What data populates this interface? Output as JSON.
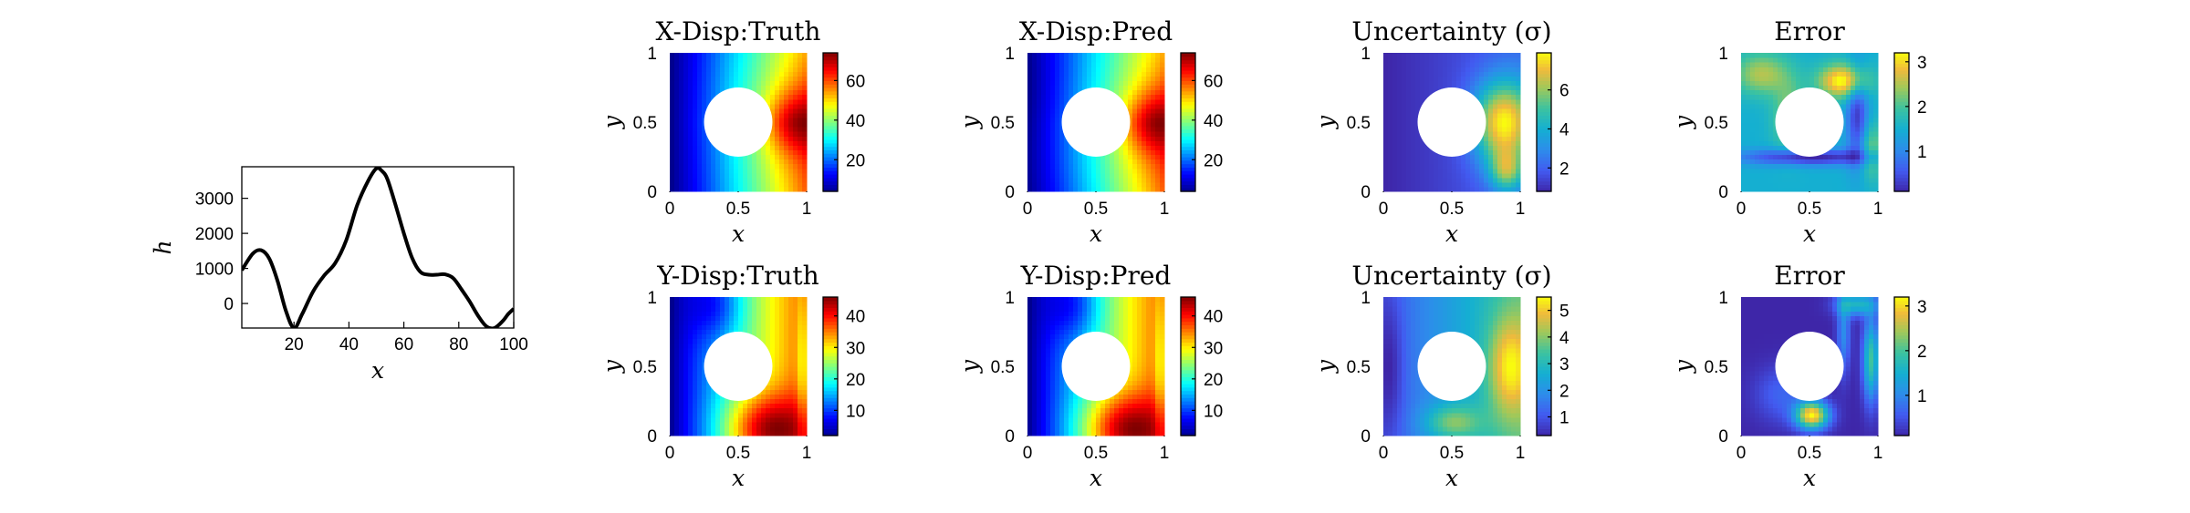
{
  "chart_data": [
    {
      "type": "line",
      "title": "",
      "xlabel": "x",
      "ylabel": "h",
      "xlim": [
        1,
        100
      ],
      "ylim": [
        -700,
        3900
      ],
      "xticks": [
        20,
        40,
        60,
        80,
        100
      ],
      "yticks": [
        0,
        1000,
        2000,
        3000
      ],
      "grid": false,
      "series": [
        {
          "x": [
            1,
            5,
            8,
            11,
            14,
            17,
            20,
            23,
            27,
            31,
            35,
            39,
            43,
            47,
            50,
            52,
            54,
            57,
            60,
            63,
            66,
            69,
            72,
            75,
            78,
            81,
            84,
            87,
            90,
            93,
            96,
            98,
            100
          ],
          "values": [
            950,
            1420,
            1520,
            1280,
            650,
            -200,
            -700,
            -300,
            350,
            800,
            1150,
            1800,
            2800,
            3500,
            3850,
            3780,
            3550,
            2800,
            2000,
            1300,
            900,
            820,
            820,
            830,
            720,
            400,
            50,
            -350,
            -650,
            -700,
            -500,
            -300,
            -150
          ]
        }
      ],
      "color": "#000000"
    },
    {
      "type": "heatmap",
      "title": "X-Disp:Truth",
      "xlabel": "x",
      "ylabel": "y",
      "xlim": [
        0,
        1
      ],
      "ylim": [
        0,
        1
      ],
      "xticks": [
        0,
        0.5,
        1
      ],
      "yticks": [
        0,
        0.5,
        1
      ],
      "hole": {
        "center": [
          0.5,
          0.5
        ],
        "radius": 0.25
      },
      "colormap": "jet",
      "clim": [
        4,
        74
      ],
      "colorbar_ticks": [
        20,
        40,
        60
      ],
      "field": "xdisp_truth"
    },
    {
      "type": "heatmap",
      "title": "X-Disp:Pred",
      "xlabel": "x",
      "ylabel": "y",
      "xlim": [
        0,
        1
      ],
      "ylim": [
        0,
        1
      ],
      "xticks": [
        0,
        0.5,
        1
      ],
      "yticks": [
        0,
        0.5,
        1
      ],
      "hole": {
        "center": [
          0.5,
          0.5
        ],
        "radius": 0.25
      },
      "colormap": "jet",
      "clim": [
        4,
        74
      ],
      "colorbar_ticks": [
        20,
        40,
        60
      ],
      "field": "xdisp_pred"
    },
    {
      "type": "heatmap",
      "title": "Uncertainty (σ)",
      "xlabel": "x",
      "ylabel": "y",
      "xlim": [
        0,
        1
      ],
      "ylim": [
        0,
        1
      ],
      "xticks": [
        0,
        0.5,
        1
      ],
      "yticks": [
        0,
        0.5,
        1
      ],
      "hole": {
        "center": [
          0.5,
          0.5
        ],
        "radius": 0.25
      },
      "colormap": "parula",
      "clim": [
        0.8,
        7.9
      ],
      "colorbar_ticks": [
        2,
        4,
        6
      ],
      "field": "xdisp_uncertainty"
    },
    {
      "type": "heatmap",
      "title": "Error",
      "xlabel": "x",
      "ylabel": "y",
      "xlim": [
        0,
        1
      ],
      "ylim": [
        0,
        1
      ],
      "xticks": [
        0,
        0.5,
        1
      ],
      "yticks": [
        0,
        0.5,
        1
      ],
      "hole": {
        "center": [
          0.5,
          0.5
        ],
        "radius": 0.25
      },
      "colormap": "parula",
      "clim": [
        0.1,
        3.2
      ],
      "colorbar_ticks": [
        1,
        2,
        3
      ],
      "field": "xdisp_error"
    },
    {
      "type": "heatmap",
      "title": "Y-Disp:Truth",
      "xlabel": "x",
      "ylabel": "y",
      "xlim": [
        0,
        1
      ],
      "ylim": [
        0,
        1
      ],
      "xticks": [
        0,
        0.5,
        1
      ],
      "yticks": [
        0,
        0.5,
        1
      ],
      "hole": {
        "center": [
          0.5,
          0.5
        ],
        "radius": 0.25
      },
      "colormap": "jet",
      "clim": [
        2,
        46
      ],
      "colorbar_ticks": [
        10,
        20,
        30,
        40
      ],
      "field": "ydisp_truth"
    },
    {
      "type": "heatmap",
      "title": "Y-Disp:Pred",
      "xlabel": "x",
      "ylabel": "y",
      "xlim": [
        0,
        1
      ],
      "ylim": [
        0,
        1
      ],
      "xticks": [
        0,
        0.5,
        1
      ],
      "yticks": [
        0,
        0.5,
        1
      ],
      "hole": {
        "center": [
          0.5,
          0.5
        ],
        "radius": 0.25
      },
      "colormap": "jet",
      "clim": [
        2,
        46
      ],
      "colorbar_ticks": [
        10,
        20,
        30,
        40
      ],
      "field": "ydisp_pred"
    },
    {
      "type": "heatmap",
      "title": "Uncertainty (σ)",
      "xlabel": "x",
      "ylabel": "y",
      "xlim": [
        0,
        1
      ],
      "ylim": [
        0,
        1
      ],
      "xticks": [
        0,
        0.5,
        1
      ],
      "yticks": [
        0,
        0.5,
        1
      ],
      "hole": {
        "center": [
          0.5,
          0.5
        ],
        "radius": 0.25
      },
      "colormap": "parula",
      "clim": [
        0.3,
        5.5
      ],
      "colorbar_ticks": [
        1,
        2,
        3,
        4,
        5
      ],
      "field": "ydisp_uncertainty"
    },
    {
      "type": "heatmap",
      "title": "Error",
      "xlabel": "x",
      "ylabel": "y",
      "xlim": [
        0,
        1
      ],
      "ylim": [
        0,
        1
      ],
      "xticks": [
        0,
        0.5,
        1
      ],
      "yticks": [
        0,
        0.5,
        1
      ],
      "hole": {
        "center": [
          0.5,
          0.5
        ],
        "radius": 0.25
      },
      "colormap": "parula",
      "clim": [
        0.1,
        3.2
      ],
      "colorbar_ticks": [
        1,
        2,
        3
      ],
      "field": "ydisp_error"
    }
  ]
}
